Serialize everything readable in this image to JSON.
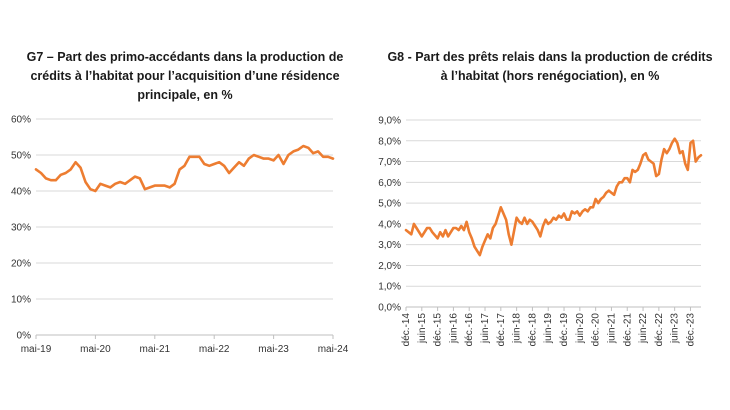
{
  "chart_data": [
    {
      "type": "line",
      "title": "G7 – Part des primo-accédants dans la production de crédits à l’habitat pour l’acquisition d’une résidence principale, en %",
      "title_lines": [
        "G7 – Part des primo-accédants dans la production de",
        "crédits à l’habitat pour l’acquisition d’une résidence",
        "principale, en %"
      ],
      "xlabel": "",
      "ylabel": "",
      "ylim": [
        0,
        60
      ],
      "y_ticks": [
        0,
        10,
        20,
        30,
        40,
        50,
        60
      ],
      "y_tick_labels": [
        "0%",
        "10%",
        "20%",
        "30%",
        "40%",
        "50%",
        "60%"
      ],
      "x_tick_labels": [
        "mai-19",
        "mai-20",
        "mai-21",
        "mai-22",
        "mai-23",
        "mai-24"
      ],
      "x_tick_positions": [
        0,
        12,
        24,
        36,
        48,
        60
      ],
      "xlim": [
        0,
        60
      ],
      "grid": "horizontal",
      "color": "#ed7d31",
      "x": [
        0,
        1,
        2,
        3,
        4,
        5,
        6,
        7,
        8,
        9,
        10,
        11,
        12,
        13,
        14,
        15,
        16,
        17,
        18,
        19,
        20,
        21,
        22,
        23,
        24,
        25,
        26,
        27,
        28,
        29,
        30,
        31,
        32,
        33,
        34,
        35,
        36,
        37,
        38,
        39,
        40,
        41,
        42,
        43,
        44,
        45,
        46,
        47,
        48,
        49,
        50,
        51,
        52,
        53,
        54,
        55,
        56,
        57,
        58,
        59,
        60
      ],
      "values": [
        46,
        45,
        43.5,
        43,
        43,
        44.5,
        45,
        46,
        48,
        46.5,
        42.5,
        40.5,
        40,
        42,
        41.5,
        41,
        42,
        42.5,
        42,
        43,
        44,
        43.5,
        40.5,
        41,
        41.5,
        41.5,
        41.5,
        41,
        42,
        46,
        47,
        49.5,
        49.5,
        49.5,
        47.5,
        47,
        47.5,
        48,
        47,
        45,
        46.5,
        48,
        47,
        49,
        50,
        49.5,
        49,
        49,
        48.5,
        50,
        47.5,
        50,
        51,
        51.5,
        52.5,
        52,
        50.5,
        51,
        49.5,
        49.5,
        49
      ]
    },
    {
      "type": "line",
      "title": "G8 - Part des prêts relais dans la production de crédits à l’habitat (hors renégociation), en %",
      "title_lines": [
        "G8 - Part des prêts relais dans la production de crédits",
        "à l’habitat (hors renégociation), en %"
      ],
      "xlabel": "",
      "ylabel": "",
      "ylim": [
        0,
        9
      ],
      "y_ticks": [
        0,
        1,
        2,
        3,
        4,
        5,
        6,
        7,
        8,
        9
      ],
      "y_tick_labels": [
        "0,0%",
        "1,0%",
        "2,0%",
        "3,0%",
        "4,0%",
        "5,0%",
        "6,0%",
        "7,0%",
        "8,0%",
        "9,0%"
      ],
      "x_tick_labels": [
        "déc.-14",
        "juin-15",
        "déc.-15",
        "juin-16",
        "déc.-16",
        "juin-17",
        "déc.-17",
        "juin-18",
        "déc.-18",
        "juin-19",
        "déc.-19",
        "juin-20",
        "déc.-20",
        "juin-21",
        "déc.-21",
        "juin-22",
        "déc.-22",
        "juin-23",
        "déc.-23"
      ],
      "x_tick_positions": [
        0,
        6,
        12,
        18,
        24,
        30,
        36,
        42,
        48,
        54,
        60,
        66,
        72,
        78,
        84,
        90,
        96,
        102,
        108
      ],
      "xlim": [
        0,
        112
      ],
      "grid": "horizontal",
      "color": "#ed7d31",
      "x": [
        0,
        2,
        3,
        4,
        6,
        8,
        9,
        10,
        12,
        13,
        14,
        15,
        16,
        18,
        19,
        20,
        21,
        22,
        23,
        24,
        25,
        26,
        28,
        29,
        30,
        31,
        32,
        33,
        34,
        35,
        36,
        38,
        39,
        40,
        42,
        43,
        44,
        45,
        46,
        47,
        48,
        49,
        50,
        51,
        52,
        53,
        54,
        55,
        56,
        57,
        58,
        59,
        60,
        61,
        62,
        63,
        64,
        65,
        66,
        67,
        68,
        69,
        70,
        71,
        72,
        73,
        74,
        75,
        76,
        77,
        78,
        79,
        80,
        81,
        82,
        83,
        84,
        85,
        86,
        87,
        88,
        89,
        90,
        91,
        92,
        93,
        94,
        95,
        96,
        97,
        98,
        99,
        100,
        101,
        102,
        103,
        104,
        105,
        106,
        107,
        108,
        109,
        110,
        111,
        112
      ],
      "values": [
        3.7,
        3.5,
        4.0,
        3.8,
        3.4,
        3.8,
        3.8,
        3.6,
        3.3,
        3.6,
        3.4,
        3.7,
        3.4,
        3.8,
        3.8,
        3.7,
        3.9,
        3.7,
        4.1,
        3.6,
        3.3,
        2.9,
        2.5,
        2.9,
        3.2,
        3.5,
        3.3,
        3.8,
        4.0,
        4.4,
        4.8,
        4.2,
        3.5,
        3.0,
        4.3,
        4.1,
        4.0,
        4.3,
        4.0,
        4.2,
        4.1,
        3.9,
        3.7,
        3.4,
        3.9,
        4.2,
        4.0,
        4.1,
        4.3,
        4.2,
        4.4,
        4.3,
        4.5,
        4.2,
        4.2,
        4.6,
        4.5,
        4.6,
        4.4,
        4.6,
        4.7,
        4.6,
        4.8,
        4.8,
        5.2,
        5.0,
        5.2,
        5.3,
        5.5,
        5.6,
        5.5,
        5.4,
        5.8,
        6.0,
        6.0,
        6.2,
        6.2,
        6.0,
        6.6,
        6.5,
        6.6,
        6.9,
        7.3,
        7.4,
        7.1,
        7.0,
        6.9,
        6.3,
        6.4,
        7.1,
        7.6,
        7.4,
        7.6,
        7.9,
        8.1,
        7.9,
        7.4,
        7.5,
        6.9,
        6.6,
        7.9,
        8.0,
        7.0,
        7.2,
        7.3
      ]
    }
  ]
}
